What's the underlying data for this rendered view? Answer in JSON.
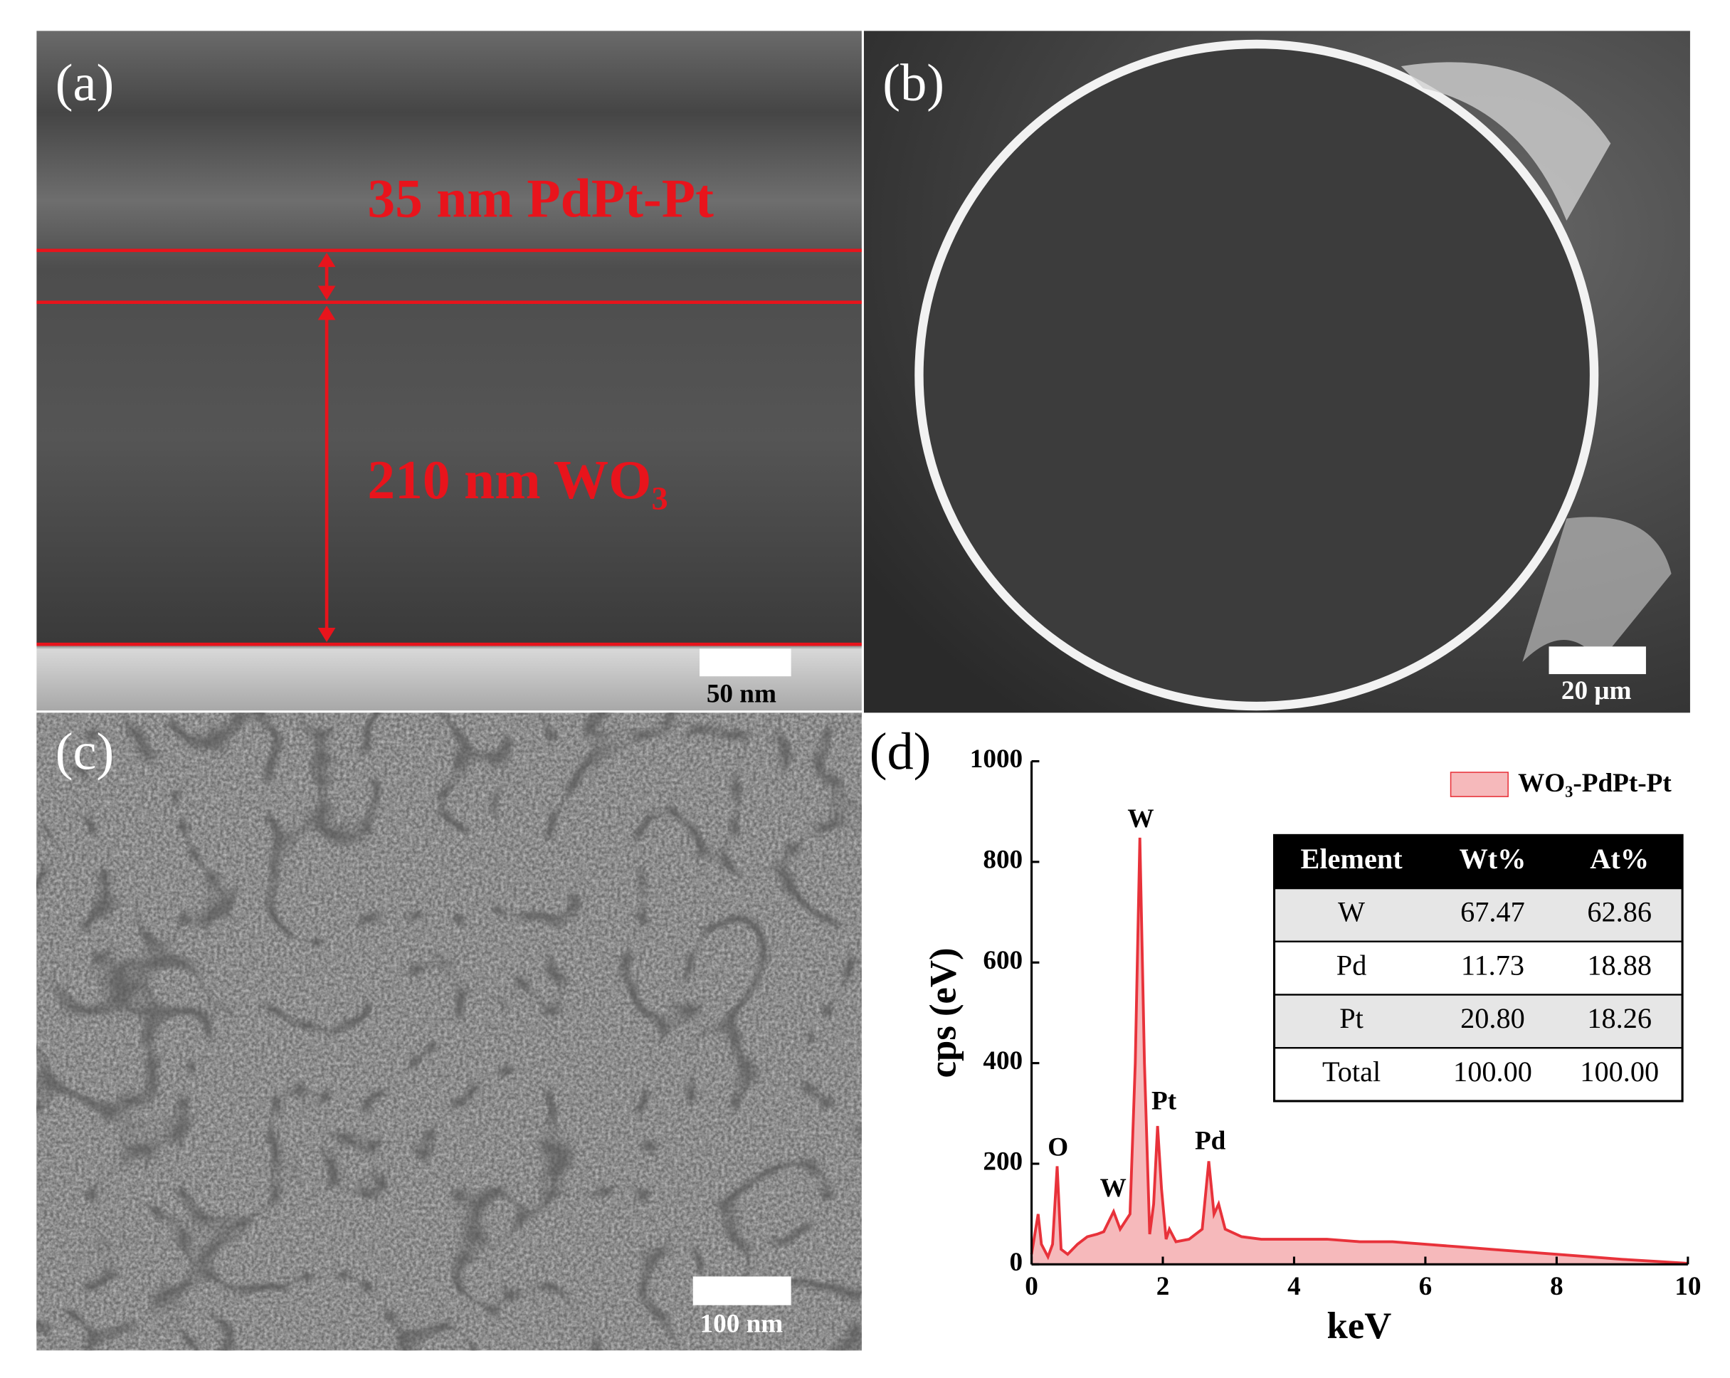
{
  "panels": [
    {
      "label": "(a)",
      "annotations": [
        "35 nm PdPt-Pt",
        "210 nm WO₃"
      ],
      "scale_bar": "50 nm"
    },
    {
      "label": "(b)",
      "scale_bar": "20 μm"
    },
    {
      "label": "(c)",
      "scale_bar": "100 nm"
    },
    {
      "label": "(d)"
    }
  ],
  "chart_data": {
    "type": "area",
    "x_label": "keV",
    "y_label": "cps (eV)",
    "x": [
      0,
      0.05,
      0.1,
      0.15,
      0.25,
      0.32,
      0.39,
      0.45,
      0.55,
      0.7,
      0.85,
      1.0,
      1.1,
      1.25,
      1.35,
      1.5,
      1.58,
      1.65,
      1.72,
      1.8,
      1.86,
      1.92,
      1.98,
      2.05,
      2.1,
      2.2,
      2.4,
      2.6,
      2.7,
      2.78,
      2.85,
      2.95,
      3.2,
      3.5,
      4.0,
      4.5,
      5.0,
      5.5,
      6.0,
      6.5,
      7.0,
      7.5,
      8.0,
      8.5,
      9.0,
      9.5,
      10.0
    ],
    "series": [
      {
        "name": "WO₃-PdPt-Pt",
        "color": "#e8323a",
        "fill": "#f6b9bb",
        "values": [
          20,
          60,
          100,
          40,
          15,
          40,
          195,
          30,
          20,
          40,
          55,
          60,
          65,
          105,
          70,
          100,
          400,
          848,
          400,
          60,
          120,
          275,
          150,
          50,
          70,
          45,
          50,
          70,
          205,
          100,
          120,
          70,
          55,
          50,
          50,
          50,
          45,
          45,
          40,
          35,
          30,
          25,
          20,
          15,
          10,
          6,
          2
        ]
      }
    ],
    "annotations": [
      "O",
      "W",
      "W",
      "Pt",
      "Pd"
    ],
    "xlim": [
      0,
      10
    ],
    "ylim": [
      0,
      1000
    ],
    "xticks": [
      0,
      2,
      4,
      6,
      8,
      10
    ],
    "yticks": [
      0,
      200,
      400,
      600,
      800,
      1000
    ],
    "legend": "upper right"
  },
  "table": {
    "header": [
      "Element",
      "Wt%",
      "At%"
    ],
    "rows": [
      [
        "W",
        "67.47",
        "62.86"
      ],
      [
        "Pd",
        "11.73",
        "18.88"
      ],
      [
        "Pt",
        "20.80",
        "18.26"
      ],
      [
        "Total",
        "100.00",
        "100.00"
      ]
    ]
  }
}
